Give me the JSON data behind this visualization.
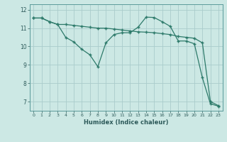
{
  "xlabel": "Humidex (Indice chaleur)",
  "bg_color": "#cce8e4",
  "grid_color": "#aacccc",
  "line_color": "#2d7a6a",
  "x_ticks": [
    0,
    1,
    2,
    3,
    4,
    5,
    6,
    7,
    8,
    9,
    10,
    11,
    12,
    13,
    14,
    15,
    16,
    17,
    18,
    19,
    20,
    21,
    22,
    23
  ],
  "y_ticks": [
    7,
    8,
    9,
    10,
    11,
    12
  ],
  "ylim": [
    6.5,
    12.3
  ],
  "xlim": [
    -0.5,
    23.5
  ],
  "line1_x": [
    0,
    1,
    2,
    3,
    4,
    5,
    6,
    7,
    8,
    9,
    10,
    11,
    12,
    13,
    14,
    15,
    16,
    17,
    18,
    19,
    20,
    21,
    22,
    23
  ],
  "line1_y": [
    11.55,
    11.55,
    11.35,
    11.2,
    11.2,
    11.15,
    11.1,
    11.05,
    11.0,
    11.0,
    10.95,
    10.9,
    10.85,
    10.8,
    10.78,
    10.75,
    10.7,
    10.65,
    10.55,
    10.5,
    10.45,
    10.2,
    7.0,
    6.78
  ],
  "line2_x": [
    0,
    1,
    2,
    3,
    4,
    5,
    6,
    7,
    8,
    9,
    10,
    11,
    12,
    13,
    14,
    15,
    16,
    17,
    18,
    19,
    20,
    21,
    22,
    23
  ],
  "line2_y": [
    11.55,
    11.55,
    11.35,
    11.2,
    10.5,
    10.25,
    9.85,
    9.55,
    8.9,
    10.2,
    10.65,
    10.75,
    10.75,
    11.05,
    11.6,
    11.58,
    11.35,
    11.1,
    10.3,
    10.3,
    10.15,
    8.3,
    6.88,
    6.75
  ]
}
